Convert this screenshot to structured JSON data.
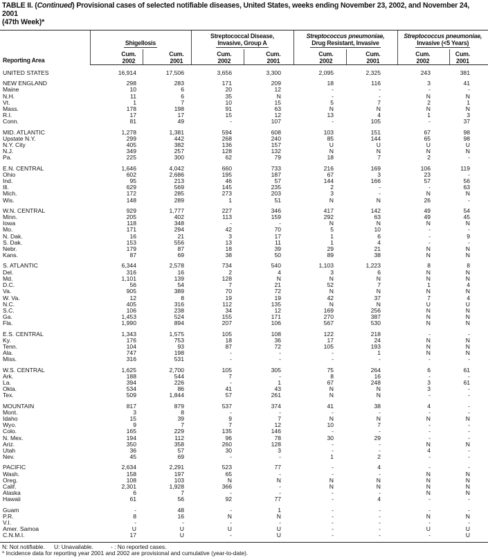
{
  "title": {
    "prefix": "TABLE II. (",
    "continued": "Continued",
    "text": ") Provisional cases of selected notifiable diseases, United States, weeks ending November 23, 2002, and November 24, 2001",
    "line2": "(47th Week)*"
  },
  "header": {
    "area_label": "Reporting Area",
    "groups": [
      {
        "line1": "",
        "line2": "Shigellosis",
        "italic": false
      },
      {
        "line1": "Streptococcal Disease,",
        "line2": "Invasive, Group A",
        "italic": false
      },
      {
        "line1": "Streptococcus pneumoniae,",
        "line2": "Drug Resistant, Invasive",
        "italic": true
      },
      {
        "line1": "Streptococcus pneumoniae,",
        "line2": "Invasive (<5 Years)",
        "italic": true
      }
    ],
    "cum_label": "Cum.",
    "years": [
      "2002",
      "2001",
      "2002",
      "2001",
      "2002",
      "2001",
      "2002",
      "2001"
    ]
  },
  "rows": [
    {
      "area": "UNITED STATES",
      "v": [
        "16,914",
        "17,506",
        "3,656",
        "3,300",
        "2,095",
        "2,325",
        "243",
        "381"
      ],
      "gap": "first"
    },
    {
      "area": "NEW ENGLAND",
      "v": [
        "298",
        "283",
        "171",
        "209",
        "18",
        "116",
        "3",
        "41"
      ],
      "gap": true
    },
    {
      "area": "Maine",
      "v": [
        "10",
        "6",
        "20",
        "12",
        "-",
        "-",
        "-",
        "-"
      ]
    },
    {
      "area": "N.H.",
      "v": [
        "11",
        "6",
        "35",
        "N",
        "-",
        "-",
        "N",
        "N"
      ]
    },
    {
      "area": "Vt.",
      "v": [
        "1",
        "7",
        "10",
        "15",
        "5",
        "7",
        "2",
        "1"
      ]
    },
    {
      "area": "Mass.",
      "v": [
        "178",
        "198",
        "91",
        "63",
        "N",
        "N",
        "N",
        "N"
      ]
    },
    {
      "area": "R.I.",
      "v": [
        "17",
        "17",
        "15",
        "12",
        "13",
        "4",
        "1",
        "3"
      ]
    },
    {
      "area": "Conn.",
      "v": [
        "81",
        "49",
        "-",
        "107",
        "-",
        "105",
        "-",
        "37"
      ]
    },
    {
      "area": "MID. ATLANTIC",
      "v": [
        "1,278",
        "1,381",
        "594",
        "608",
        "103",
        "151",
        "67",
        "98"
      ],
      "gap": true
    },
    {
      "area": "Upstate N.Y.",
      "v": [
        "299",
        "442",
        "268",
        "240",
        "85",
        "144",
        "65",
        "98"
      ]
    },
    {
      "area": "N.Y. City",
      "v": [
        "405",
        "382",
        "136",
        "157",
        "U",
        "U",
        "U",
        "U"
      ]
    },
    {
      "area": "N.J.",
      "v": [
        "349",
        "257",
        "128",
        "132",
        "N",
        "N",
        "N",
        "N"
      ]
    },
    {
      "area": "Pa.",
      "v": [
        "225",
        "300",
        "62",
        "79",
        "18",
        "7",
        "2",
        "-"
      ]
    },
    {
      "area": "E.N. CENTRAL",
      "v": [
        "1,646",
        "4,042",
        "660",
        "733",
        "216",
        "169",
        "106",
        "119"
      ],
      "gap": true
    },
    {
      "area": "Ohio",
      "v": [
        "602",
        "2,686",
        "195",
        "187",
        "67",
        "3",
        "23",
        "-"
      ]
    },
    {
      "area": "Ind.",
      "v": [
        "95",
        "213",
        "46",
        "57",
        "144",
        "166",
        "57",
        "56"
      ]
    },
    {
      "area": "Ill.",
      "v": [
        "629",
        "569",
        "145",
        "235",
        "2",
        "-",
        "-",
        "63"
      ]
    },
    {
      "area": "Mich.",
      "v": [
        "172",
        "285",
        "273",
        "203",
        "3",
        "-",
        "N",
        "N"
      ]
    },
    {
      "area": "Wis.",
      "v": [
        "148",
        "289",
        "1",
        "51",
        "N",
        "N",
        "26",
        "-"
      ]
    },
    {
      "area": "W.N. CENTRAL",
      "v": [
        "929",
        "1,777",
        "227",
        "346",
        "417",
        "142",
        "49",
        "54"
      ],
      "gap": true
    },
    {
      "area": "Minn.",
      "v": [
        "205",
        "402",
        "113",
        "159",
        "292",
        "63",
        "49",
        "45"
      ]
    },
    {
      "area": "Iowa",
      "v": [
        "118",
        "348",
        "-",
        "-",
        "N",
        "N",
        "N",
        "N"
      ]
    },
    {
      "area": "Mo.",
      "v": [
        "171",
        "294",
        "42",
        "70",
        "5",
        "10",
        "-",
        "-"
      ]
    },
    {
      "area": "N. Dak.",
      "v": [
        "16",
        "21",
        "3",
        "17",
        "1",
        "6",
        "-",
        "9"
      ]
    },
    {
      "area": "S. Dak.",
      "v": [
        "153",
        "556",
        "13",
        "11",
        "1",
        "4",
        "-",
        "-"
      ]
    },
    {
      "area": "Nebr.",
      "v": [
        "179",
        "87",
        "18",
        "39",
        "29",
        "21",
        "N",
        "N"
      ]
    },
    {
      "area": "Kans.",
      "v": [
        "87",
        "69",
        "38",
        "50",
        "89",
        "38",
        "N",
        "N"
      ]
    },
    {
      "area": "S. ATLANTIC",
      "v": [
        "6,344",
        "2,578",
        "734",
        "540",
        "1,103",
        "1,223",
        "8",
        "8"
      ],
      "gap": true
    },
    {
      "area": "Del.",
      "v": [
        "316",
        "16",
        "2",
        "4",
        "3",
        "6",
        "N",
        "N"
      ]
    },
    {
      "area": "Md.",
      "v": [
        "1,101",
        "139",
        "128",
        "N",
        "N",
        "N",
        "N",
        "N"
      ]
    },
    {
      "area": "D.C.",
      "v": [
        "56",
        "54",
        "7",
        "21",
        "52",
        "7",
        "1",
        "4"
      ]
    },
    {
      "area": "Va.",
      "v": [
        "905",
        "389",
        "70",
        "72",
        "N",
        "N",
        "N",
        "N"
      ]
    },
    {
      "area": "W. Va.",
      "v": [
        "12",
        "8",
        "19",
        "19",
        "42",
        "37",
        "7",
        "4"
      ]
    },
    {
      "area": "N.C.",
      "v": [
        "405",
        "316",
        "112",
        "135",
        "N",
        "N",
        "U",
        "U"
      ]
    },
    {
      "area": "S.C.",
      "v": [
        "106",
        "238",
        "34",
        "12",
        "169",
        "256",
        "N",
        "N"
      ]
    },
    {
      "area": "Ga.",
      "v": [
        "1,453",
        "524",
        "155",
        "171",
        "270",
        "387",
        "N",
        "N"
      ]
    },
    {
      "area": "Fla.",
      "v": [
        "1,990",
        "894",
        "207",
        "106",
        "567",
        "530",
        "N",
        "N"
      ]
    },
    {
      "area": "E.S. CENTRAL",
      "v": [
        "1,343",
        "1,575",
        "105",
        "108",
        "122",
        "218",
        "-",
        "-"
      ],
      "gap": true
    },
    {
      "area": "Ky.",
      "v": [
        "176",
        "753",
        "18",
        "36",
        "17",
        "24",
        "N",
        "N"
      ]
    },
    {
      "area": "Tenn.",
      "v": [
        "104",
        "93",
        "87",
        "72",
        "105",
        "193",
        "N",
        "N"
      ]
    },
    {
      "area": "Ala.",
      "v": [
        "747",
        "198",
        "-",
        "-",
        "-",
        "1",
        "N",
        "N"
      ]
    },
    {
      "area": "Miss.",
      "v": [
        "316",
        "531",
        "-",
        "-",
        "-",
        "-",
        "-",
        "-"
      ]
    },
    {
      "area": "W.S. CENTRAL",
      "v": [
        "1,625",
        "2,700",
        "105",
        "305",
        "75",
        "264",
        "6",
        "61"
      ],
      "gap": true
    },
    {
      "area": "Ark.",
      "v": [
        "188",
        "544",
        "7",
        "-",
        "8",
        "16",
        "-",
        "-"
      ]
    },
    {
      "area": "La.",
      "v": [
        "394",
        "226",
        "-",
        "1",
        "67",
        "248",
        "3",
        "61"
      ]
    },
    {
      "area": "Okla.",
      "v": [
        "534",
        "86",
        "41",
        "43",
        "N",
        "N",
        "3",
        "-"
      ]
    },
    {
      "area": "Tex.",
      "v": [
        "509",
        "1,844",
        "57",
        "261",
        "N",
        "N",
        "-",
        "-"
      ]
    },
    {
      "area": "MOUNTAIN",
      "v": [
        "817",
        "879",
        "537",
        "374",
        "41",
        "38",
        "4",
        "-"
      ],
      "gap": true
    },
    {
      "area": "Mont.",
      "v": [
        "3",
        "8",
        "-",
        "-",
        "-",
        "-",
        "-",
        "-"
      ]
    },
    {
      "area": "Idaho",
      "v": [
        "15",
        "39",
        "9",
        "7",
        "N",
        "N",
        "N",
        "N"
      ]
    },
    {
      "area": "Wyo.",
      "v": [
        "9",
        "7",
        "7",
        "12",
        "10",
        "7",
        "-",
        "-"
      ]
    },
    {
      "area": "Colo.",
      "v": [
        "165",
        "229",
        "135",
        "146",
        "-",
        "-",
        "-",
        "-"
      ]
    },
    {
      "area": "N. Mex.",
      "v": [
        "194",
        "112",
        "96",
        "78",
        "30",
        "29",
        "-",
        "-"
      ]
    },
    {
      "area": "Ariz.",
      "v": [
        "350",
        "358",
        "260",
        "128",
        "-",
        "-",
        "N",
        "N"
      ]
    },
    {
      "area": "Utah",
      "v": [
        "36",
        "57",
        "30",
        "3",
        "-",
        "-",
        "4",
        "-"
      ]
    },
    {
      "area": "Nev.",
      "v": [
        "45",
        "69",
        "-",
        "-",
        "1",
        "2",
        "-",
        "-"
      ]
    },
    {
      "area": "PACIFIC",
      "v": [
        "2,634",
        "2,291",
        "523",
        "77",
        "-",
        "4",
        "-",
        "-"
      ],
      "gap": true
    },
    {
      "area": "Wash.",
      "v": [
        "158",
        "197",
        "65",
        "-",
        "-",
        "-",
        "N",
        "N"
      ]
    },
    {
      "area": "Oreg.",
      "v": [
        "108",
        "103",
        "N",
        "N",
        "N",
        "N",
        "N",
        "N"
      ]
    },
    {
      "area": "Calif.",
      "v": [
        "2,301",
        "1,928",
        "366",
        "-",
        "N",
        "N",
        "N",
        "N"
      ]
    },
    {
      "area": "Alaska",
      "v": [
        "6",
        "7",
        "-",
        "-",
        "-",
        "-",
        "N",
        "N"
      ]
    },
    {
      "area": "Hawaii",
      "v": [
        "61",
        "56",
        "92",
        "77",
        "-",
        "4",
        "-",
        "-"
      ]
    },
    {
      "area": "Guam",
      "v": [
        "-",
        "48",
        "-",
        "1",
        "-",
        "-",
        "-",
        "-"
      ],
      "gap": true
    },
    {
      "area": "P.R.",
      "v": [
        "8",
        "16",
        "N",
        "N",
        "-",
        "-",
        "N",
        "N"
      ]
    },
    {
      "area": "V.I.",
      "v": [
        "-",
        "-",
        "-",
        "-",
        "-",
        "-",
        "-",
        "-"
      ]
    },
    {
      "area": "Amer. Samoa",
      "v": [
        "U",
        "U",
        "U",
        "U",
        "-",
        "-",
        "U",
        "U"
      ]
    },
    {
      "area": "C.N.M.I.",
      "v": [
        "17",
        "U",
        "-",
        "U",
        "-",
        "-",
        "-",
        "U"
      ]
    }
  ],
  "footer": {
    "legend": [
      "N: Not notifiable.",
      "U: Unavailable.",
      "- : No reported cases."
    ],
    "note": "* Incidence data for reporting year 2001 and 2002 are provisional and cumulative (year-to-date)."
  }
}
